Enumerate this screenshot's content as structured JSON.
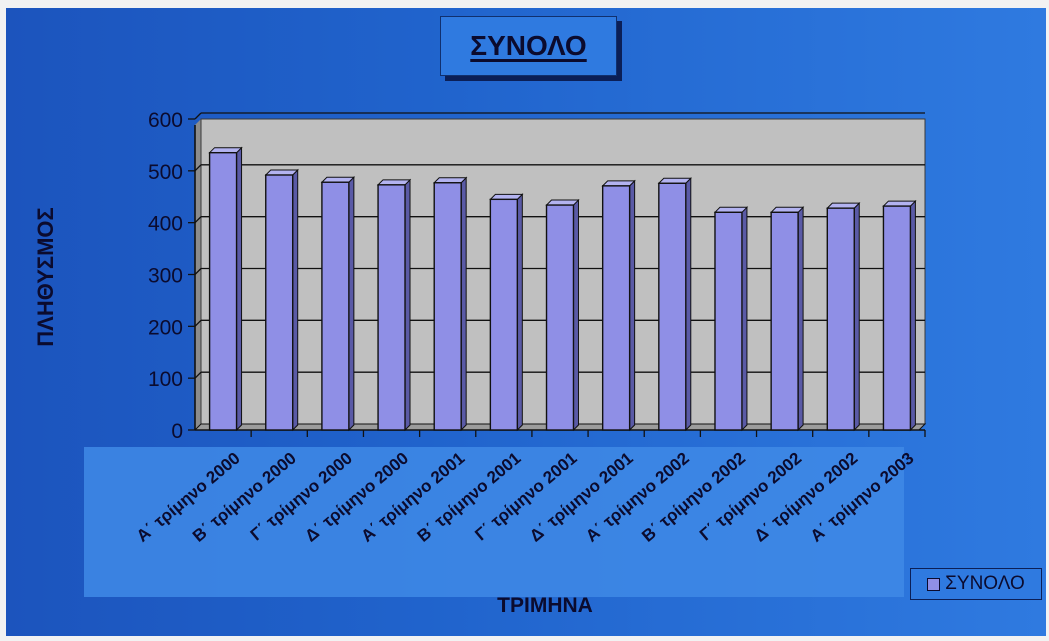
{
  "chart_data": {
    "type": "bar",
    "title": "ΣΥΝΟΛΟ",
    "xlabel": "ΤΡΙΜΗΝΑ",
    "ylabel": "ΠΛΗΘΥΣΜΟΣ",
    "categories": [
      "Α΄ τρίμηνο 2000",
      "Β΄ τρίμηνο 2000",
      "Γ΄ τρίμηνο 2000",
      "Δ΄ τρίμηνο 2000",
      "Α΄ τρίμηνο 2001",
      "Β΄ τρίμηνο 2001",
      "Γ΄ τρίμηνο 2001",
      "Δ΄ τρίμηνο 2001",
      "Α΄ τρίμηνο 2002",
      "Β΄ τρίμηνο 2002",
      "Γ΄ τρίμηνο 2002",
      "Δ΄ τρίμηνο 2002",
      "Α΄ τρίμηνο 2003"
    ],
    "series": [
      {
        "name": "ΣΥΝΟΛΟ",
        "values": [
          535,
          492,
          478,
          473,
          477,
          445,
          434,
          471,
          476,
          420,
          420,
          428,
          432
        ]
      }
    ],
    "ylim": [
      0,
      600
    ],
    "yticks": [
      0,
      100,
      200,
      300,
      400,
      500,
      600
    ],
    "grid": true,
    "legend": "bottom-right",
    "colors": {
      "bar": "#8f8fe6",
      "plot_bg": "#c0c0c0",
      "background": "#1f5fc8",
      "text": "#0b0b2e"
    }
  }
}
